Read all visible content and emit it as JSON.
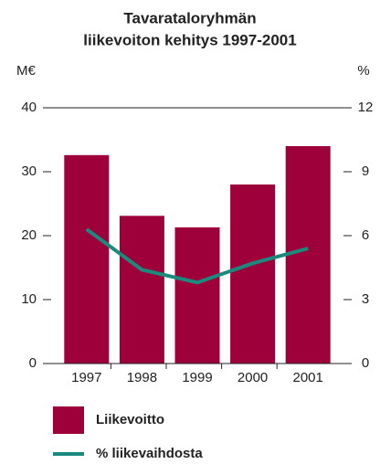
{
  "chart_data": {
    "type": "bar",
    "title": [
      "Tavarataloryhmän",
      "liikevoiton kehitys 1997-2001"
    ],
    "ylabel": "M€",
    "y2label": "%",
    "categories": [
      "1997",
      "1998",
      "1999",
      "2000",
      "2001"
    ],
    "series": [
      {
        "name": "Liikevoitto",
        "type": "bar",
        "color": "#9e0039",
        "values": [
          32.6,
          23.1,
          21.3,
          28,
          34
        ]
      },
      {
        "name": "% liikevaihdosta",
        "type": "line",
        "axis": "y2",
        "color": "#1a8a7e",
        "values": [
          6.3,
          4.4,
          3.8,
          4.7,
          5.4
        ]
      }
    ],
    "ylim": [
      0,
      40
    ],
    "yticks": [
      0,
      10,
      20,
      30,
      40
    ],
    "y2lim": [
      0,
      12
    ],
    "y2ticks": [
      0,
      3,
      6,
      9,
      12
    ]
  }
}
